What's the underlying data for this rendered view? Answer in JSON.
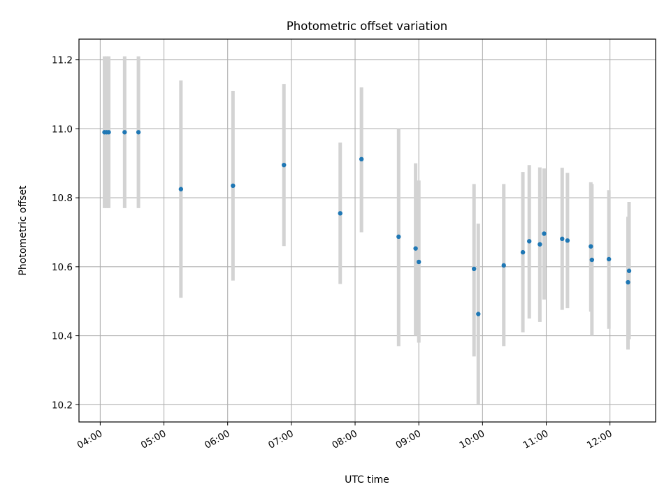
{
  "chart_data": {
    "type": "scatter",
    "title": "Photometric offset variation",
    "xlabel": "UTC time",
    "ylabel": "Photometric offset",
    "x_ticks": [
      "04:00",
      "05:00",
      "06:00",
      "07:00",
      "08:00",
      "09:00",
      "10:00",
      "11:00",
      "12:00"
    ],
    "y_ticks": [
      "10.2",
      "10.4",
      "10.6",
      "10.8",
      "11.0",
      "11.2"
    ],
    "xlim": [
      "03:40",
      "12:43"
    ],
    "ylim": [
      10.15,
      11.26
    ],
    "grid": true,
    "colors": {
      "point": "#1f77b4",
      "errorbar": "#d3d3d3",
      "grid": "#b0b0b0"
    },
    "points": [
      {
        "x": "04:04",
        "y": 10.99,
        "lo": 10.77,
        "hi": 11.21
      },
      {
        "x": "04:06",
        "y": 10.99,
        "lo": 10.77,
        "hi": 11.21
      },
      {
        "x": "04:08",
        "y": 10.99,
        "lo": 10.77,
        "hi": 11.21
      },
      {
        "x": "04:23",
        "y": 10.99,
        "lo": 10.77,
        "hi": 11.21
      },
      {
        "x": "04:36",
        "y": 10.99,
        "lo": 10.77,
        "hi": 11.21
      },
      {
        "x": "05:16",
        "y": 10.825,
        "lo": 10.51,
        "hi": 11.14
      },
      {
        "x": "06:05",
        "y": 10.835,
        "lo": 10.56,
        "hi": 11.11
      },
      {
        "x": "06:53",
        "y": 10.895,
        "lo": 10.66,
        "hi": 11.13
      },
      {
        "x": "07:46",
        "y": 10.755,
        "lo": 10.55,
        "hi": 10.96
      },
      {
        "x": "08:06",
        "y": 10.912,
        "lo": 10.7,
        "hi": 11.12
      },
      {
        "x": "08:41",
        "y": 10.687,
        "lo": 10.37,
        "hi": 11.0
      },
      {
        "x": "08:57",
        "y": 10.653,
        "lo": 10.4,
        "hi": 10.9
      },
      {
        "x": "09:00",
        "y": 10.614,
        "lo": 10.38,
        "hi": 10.85
      },
      {
        "x": "09:52",
        "y": 10.594,
        "lo": 10.34,
        "hi": 10.84
      },
      {
        "x": "09:56",
        "y": 10.463,
        "lo": 10.2,
        "hi": 10.725
      },
      {
        "x": "10:20",
        "y": 10.604,
        "lo": 10.37,
        "hi": 10.84
      },
      {
        "x": "10:38",
        "y": 10.642,
        "lo": 10.41,
        "hi": 10.875
      },
      {
        "x": "10:44",
        "y": 10.674,
        "lo": 10.45,
        "hi": 10.895
      },
      {
        "x": "10:54",
        "y": 10.665,
        "lo": 10.44,
        "hi": 10.888
      },
      {
        "x": "10:58",
        "y": 10.696,
        "lo": 10.505,
        "hi": 10.885
      },
      {
        "x": "11:15",
        "y": 10.681,
        "lo": 10.475,
        "hi": 10.887
      },
      {
        "x": "11:20",
        "y": 10.676,
        "lo": 10.48,
        "hi": 10.872
      },
      {
        "x": "11:42",
        "y": 10.659,
        "lo": 10.47,
        "hi": 10.845
      },
      {
        "x": "11:43",
        "y": 10.62,
        "lo": 10.4,
        "hi": 10.84
      },
      {
        "x": "11:59",
        "y": 10.622,
        "lo": 10.42,
        "hi": 10.822
      },
      {
        "x": "12:17",
        "y": 10.555,
        "lo": 10.36,
        "hi": 10.745
      },
      {
        "x": "12:18",
        "y": 10.588,
        "lo": 10.39,
        "hi": 10.788
      }
    ]
  }
}
